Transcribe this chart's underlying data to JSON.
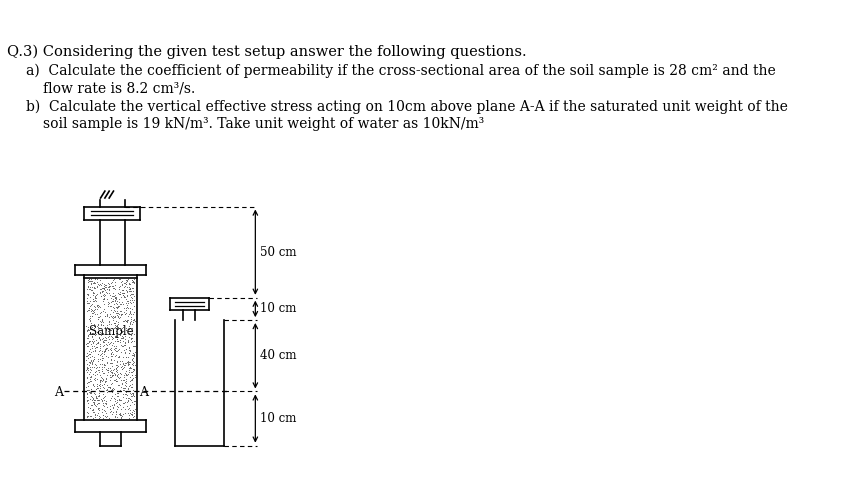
{
  "title_line1": "Q.3) Considering the given test setup answer the following questions.",
  "part_a": "a)  Calculate the coefficient of permeability if the cross-sectional area of the soil sample is 28 cm² and the",
  "part_a2": "flow rate is 8.2 cm³/s.",
  "part_b": "b)  Calculate the vertical effective stress acting on 10cm above plane A-A if the saturated unit weight of the",
  "part_b2": "soil sample is 19 kN/m³. Take unit weight of water as 10kN/m³",
  "label_50cm": "50 cm",
  "label_10cm_top": "10 cm",
  "label_40cm": "40 cm",
  "label_10cm_bot": "10 cm",
  "label_sample": "Sample",
  "label_A_left": "A",
  "label_A_right": "A",
  "bg_color": "#ffffff",
  "text_color": "#000000",
  "diagram_color": "#000000",
  "font_size_title": 10.5,
  "font_size_text": 10.0,
  "font_size_labels": 8.5
}
